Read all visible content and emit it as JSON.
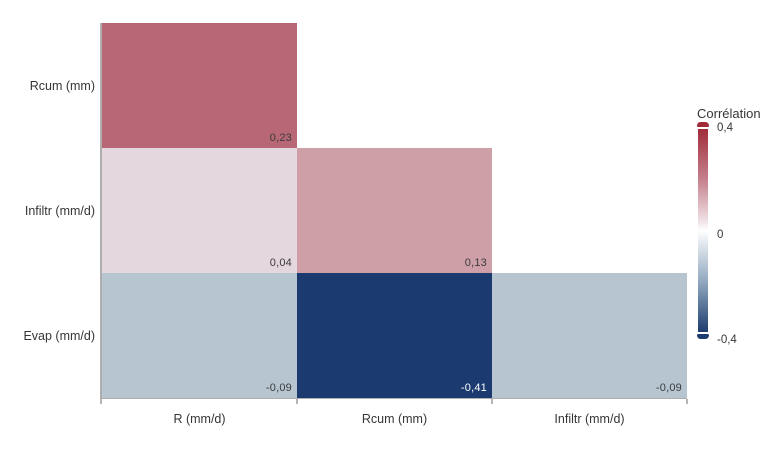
{
  "chart_data": {
    "type": "heatmap",
    "title": "",
    "x_categories": [
      "R (mm/d)",
      "Rcum (mm)",
      "Infiltr (mm/d)"
    ],
    "y_categories": [
      "Rcum (mm)",
      "Infiltr (mm/d)",
      "Evap (mm/d)"
    ],
    "value_range": [
      -0.4,
      0.4
    ],
    "decimal_separator": ",",
    "cells": [
      {
        "row": 0,
        "col": 0,
        "x": "R (mm/d)",
        "y": "Rcum (mm)",
        "label": "0,23",
        "value": 0.23,
        "color": "#b86777",
        "text_color": "#3b3b3b"
      },
      {
        "row": 1,
        "col": 0,
        "x": "R (mm/d)",
        "y": "Infiltr (mm/d)",
        "label": "0,04",
        "value": 0.04,
        "color": "#e4d7dd",
        "text_color": "#3b3b3b"
      },
      {
        "row": 1,
        "col": 1,
        "x": "Rcum (mm)",
        "y": "Infiltr (mm/d)",
        "label": "0,13",
        "value": 0.13,
        "color": "#cf9fa8",
        "text_color": "#3b3b3b"
      },
      {
        "row": 2,
        "col": 0,
        "x": "R (mm/d)",
        "y": "Evap (mm/d)",
        "label": "-0,09",
        "value": -0.09,
        "color": "#b7c5d1",
        "text_color": "#3b3b3b"
      },
      {
        "row": 2,
        "col": 1,
        "x": "Rcum (mm)",
        "y": "Evap (mm/d)",
        "label": "-0,41",
        "value": -0.41,
        "color": "#1a3a70",
        "text_color": "#ffffff"
      },
      {
        "row": 2,
        "col": 2,
        "x": "Infiltr (mm/d)",
        "y": "Evap (mm/d)",
        "label": "-0,09",
        "value": -0.09,
        "color": "#b7c5d1",
        "text_color": "#3b3b3b"
      }
    ],
    "legend": {
      "title": "Corrélation",
      "labels": [
        "0,4",
        "0",
        "-0,4"
      ],
      "cap_top_color": "#a12a38",
      "cap_bottom_color": "#1c3b6e",
      "gradient_stops": [
        [
          "#a22d3b",
          0
        ],
        [
          "#c5808d",
          25
        ],
        [
          "#efe0e4",
          45
        ],
        [
          "#ffffff",
          50
        ],
        [
          "#e8edf2",
          55
        ],
        [
          "#92a9c0",
          75
        ],
        [
          "#1e3d6f",
          100
        ]
      ]
    }
  }
}
